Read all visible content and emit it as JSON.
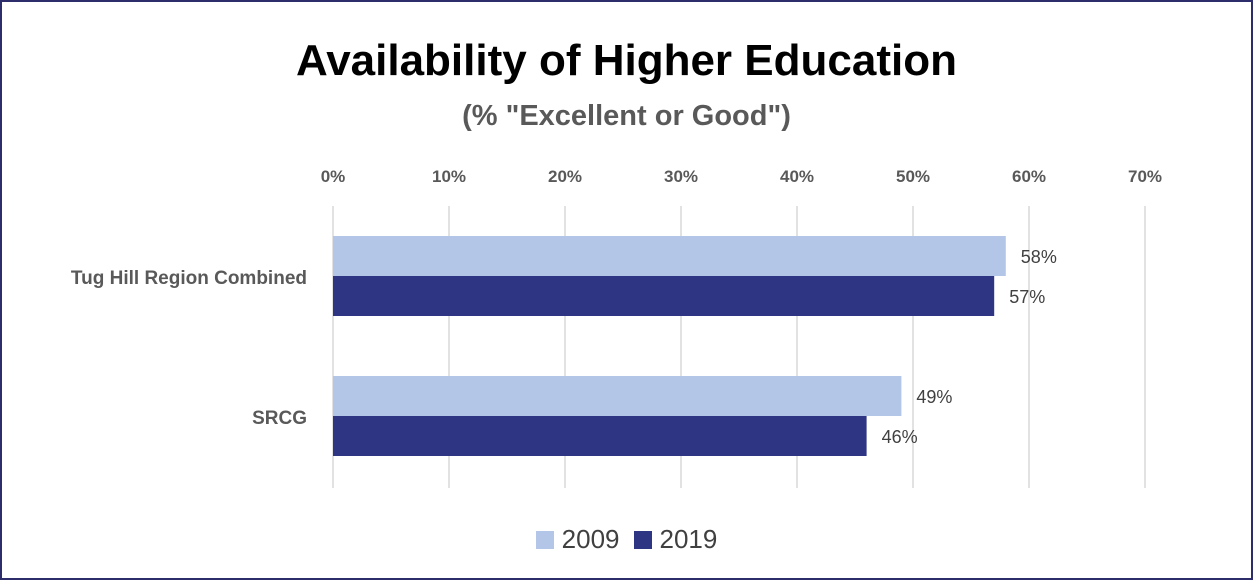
{
  "chart_data": {
    "type": "bar",
    "orientation": "horizontal",
    "title": "Availability of Higher Education",
    "subtitle": "(% \"Excellent or Good\")",
    "categories": [
      "Tug Hill Region Combined",
      "SRCG"
    ],
    "series": [
      {
        "name": "2009",
        "values": [
          58,
          49
        ],
        "labels": [
          "58%",
          "49%"
        ],
        "color": "#b4c6e7"
      },
      {
        "name": "2019",
        "values": [
          57,
          46
        ],
        "labels": [
          "57%",
          "46%"
        ],
        "color": "#2e3583"
      }
    ],
    "xlim": [
      0,
      70
    ],
    "x_ticks": [
      0,
      10,
      20,
      30,
      40,
      50,
      60,
      70
    ],
    "x_tick_labels": [
      "0%",
      "10%",
      "20%",
      "30%",
      "40%",
      "50%",
      "60%",
      "70%"
    ],
    "x_axis_position": "top",
    "grid": true,
    "legend": "bottom"
  }
}
